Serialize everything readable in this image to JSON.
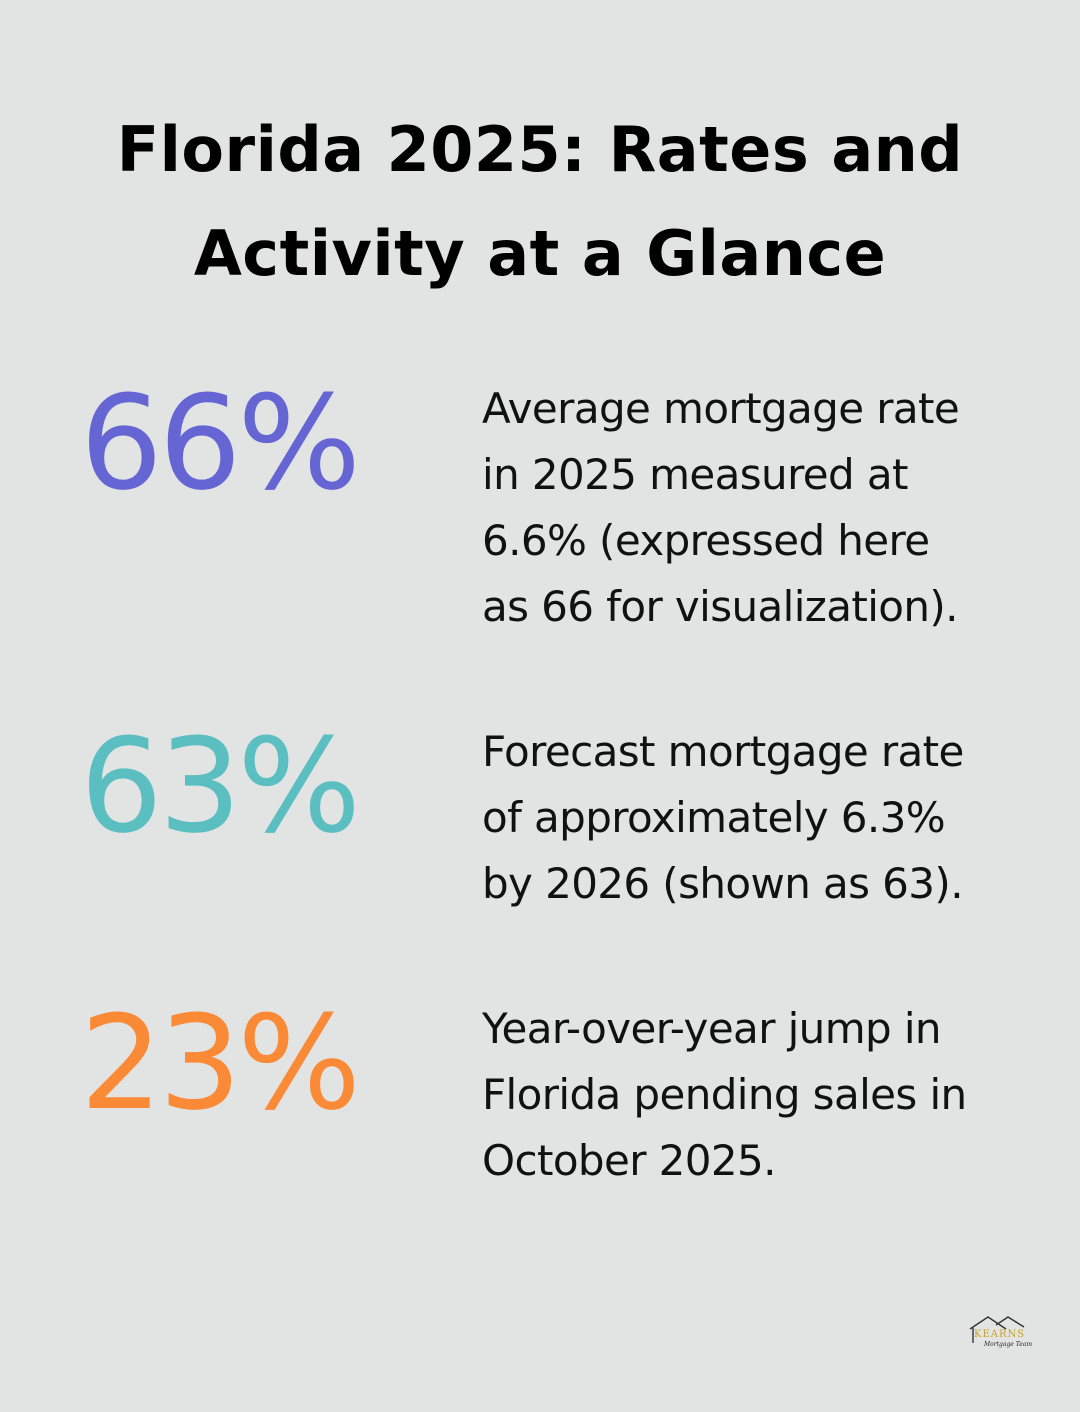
{
  "title": {
    "line1": "Florida 2025: Rates and",
    "line2": "Activity at a Glance"
  },
  "stats": [
    {
      "value": "66%",
      "color": "#6566d4",
      "lines": [
        "Average mortgage rate",
        "in 2025 measured at",
        "6.6% (expressed here",
        "as 66 for visualization)."
      ]
    },
    {
      "value": "63%",
      "color": "#5bbfc2",
      "lines": [
        "Forecast mortgage rate",
        "of approximately 6.3%",
        "by 2026 (shown as 63)."
      ]
    },
    {
      "value": "23%",
      "color": "#fb8a37",
      "lines": [
        "Year-over-year jump in",
        "Florida pending sales in",
        "October 2025."
      ]
    }
  ],
  "logo": {
    "name": "KEARNS",
    "tagline": "Mortgage Team",
    "gold": "#c9a227"
  }
}
